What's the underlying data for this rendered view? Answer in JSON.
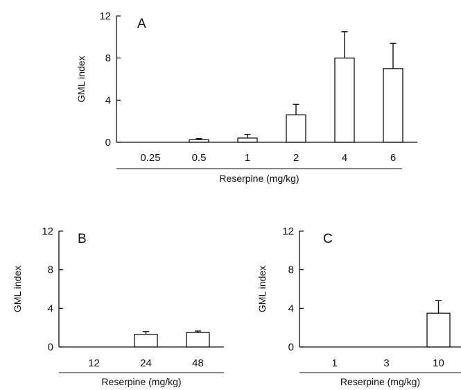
{
  "figure": {
    "colors": {
      "ink": "#111111",
      "bar_fill": "#ffffff",
      "background": "#ffffff"
    }
  },
  "chart_data": [
    {
      "type": "bar",
      "panel": "A",
      "categories": [
        "0.25",
        "0.5",
        "1",
        "2",
        "4",
        "6"
      ],
      "series": [
        {
          "values": [
            0,
            0.25,
            0.4,
            2.6,
            8.0,
            7.0
          ],
          "error": [
            0,
            0.1,
            0.35,
            1.0,
            2.5,
            2.4
          ]
        }
      ],
      "ylabel": "GML index",
      "xlabel": "Reserpine (mg/kg)",
      "ylim": [
        0,
        12
      ],
      "yticks": [
        "0",
        "4",
        "8",
        "12"
      ],
      "grid": false
    },
    {
      "type": "bar",
      "panel": "B",
      "categories": [
        "12",
        "24",
        "48"
      ],
      "series": [
        {
          "values": [
            0,
            1.3,
            1.5
          ],
          "error": [
            0,
            0.3,
            0.15
          ]
        }
      ],
      "ylabel": "GML index",
      "xlabel": "Reserpine (mg/kg)",
      "ylim": [
        0,
        12
      ],
      "yticks": [
        "0",
        "4",
        "8",
        "12"
      ],
      "grid": false
    },
    {
      "type": "bar",
      "panel": "C",
      "categories": [
        "1",
        "3",
        "10"
      ],
      "series": [
        {
          "values": [
            0,
            0,
            3.5
          ],
          "error": [
            0,
            0,
            1.3
          ]
        }
      ],
      "ylabel": "GML index",
      "xlabel": "Reserpine (mg/kg)",
      "ylim": [
        0,
        12
      ],
      "yticks": [
        "0",
        "4",
        "8",
        "12"
      ],
      "grid": false
    }
  ]
}
